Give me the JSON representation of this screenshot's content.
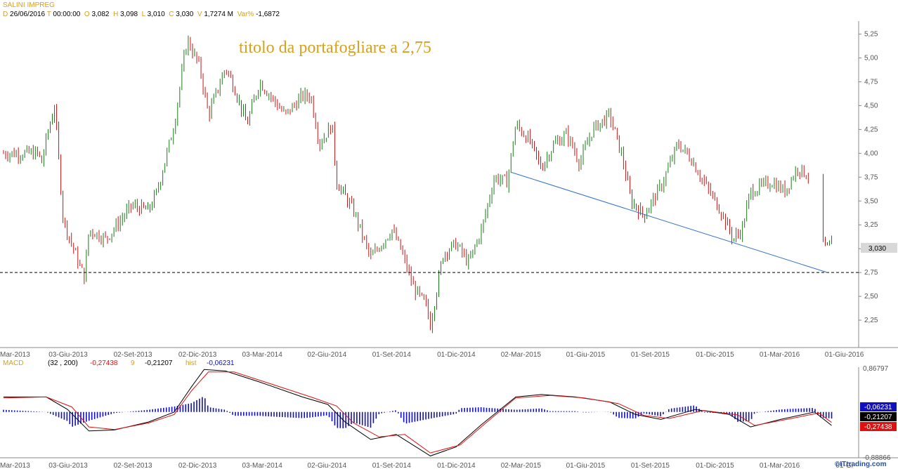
{
  "header": {
    "symbol": "SALINI IMPREG",
    "date_key": "D",
    "date": "26/06/2016",
    "time_key": "T",
    "time": "00:00:00",
    "open_key": "O",
    "open": "3,082",
    "high_key": "H",
    "high": "3,098",
    "low_key": "L",
    "low": "3,010",
    "close_key": "C",
    "close": "3,030",
    "volume_key": "V",
    "volume": "1,7274 M",
    "var_key": "Var%",
    "var": "-1,6872"
  },
  "annotation": "titolo da portafogliare a 2,75",
  "last_price_label": "3,030",
  "watermark": "©ITtrading.com",
  "colors": {
    "up": "#1a7a1a",
    "down": "#c81414",
    "trendline": "#3070c8",
    "accent": "#d6a020",
    "macd_hist": "#1010c0",
    "macd_line": "#000000",
    "signal_line": "#e01010"
  },
  "chart_data": [
    {
      "type": "candlestick",
      "title": "SALINI IMPREG",
      "x_tick_labels": [
        "Mar-2013",
        "03-Giu-2013",
        "02-Set-2013",
        "02-Dic-2013",
        "03-Mar-2014",
        "02-Giu-2014",
        "01-Set-2014",
        "01-Dic-2014",
        "02-Mar-2015",
        "01-Giu-2015",
        "01-Set-2015",
        "01-Dic-2015",
        "01-Mar-2016",
        "01-Giu-2016"
      ],
      "y_ticks": [
        "2,25",
        "2,50",
        "2,75",
        "3,00",
        "3,25",
        "3,50",
        "3,75",
        "4,00",
        "4,25",
        "4,50",
        "4,75",
        "5,00",
        "5,25"
      ],
      "y_tick_values": [
        2.25,
        2.5,
        2.75,
        3.0,
        3.25,
        3.5,
        3.75,
        4.0,
        4.25,
        4.5,
        4.75,
        5.0,
        5.25
      ],
      "ylim": [
        2.0,
        5.35
      ],
      "close_path": [
        [
          0,
          4.0
        ],
        [
          0.04,
          4.0
        ],
        [
          0.045,
          3.9
        ],
        [
          0.05,
          4.15
        ],
        [
          0.06,
          4.5
        ],
        [
          0.07,
          3.3
        ],
        [
          0.09,
          2.8
        ],
        [
          0.095,
          2.7
        ],
        [
          0.1,
          3.2
        ],
        [
          0.12,
          3.1
        ],
        [
          0.15,
          3.45
        ],
        [
          0.17,
          3.4
        ],
        [
          0.18,
          3.6
        ],
        [
          0.2,
          4.3
        ],
        [
          0.215,
          5.2
        ],
        [
          0.23,
          4.9
        ],
        [
          0.24,
          4.4
        ],
        [
          0.26,
          4.9
        ],
        [
          0.27,
          4.7
        ],
        [
          0.285,
          4.3
        ],
        [
          0.3,
          4.75
        ],
        [
          0.33,
          4.4
        ],
        [
          0.35,
          4.6
        ],
        [
          0.36,
          4.6
        ],
        [
          0.37,
          4.1
        ],
        [
          0.385,
          4.3
        ],
        [
          0.39,
          3.7
        ],
        [
          0.41,
          3.4
        ],
        [
          0.43,
          2.9
        ],
        [
          0.455,
          3.2
        ],
        [
          0.465,
          3.0
        ],
        [
          0.48,
          2.6
        ],
        [
          0.495,
          2.4
        ],
        [
          0.5,
          2.2
        ],
        [
          0.515,
          2.95
        ],
        [
          0.53,
          3.05
        ],
        [
          0.545,
          2.85
        ],
        [
          0.56,
          3.2
        ],
        [
          0.575,
          3.75
        ],
        [
          0.59,
          3.7
        ],
        [
          0.6,
          4.3
        ],
        [
          0.615,
          4.15
        ],
        [
          0.63,
          3.85
        ],
        [
          0.645,
          4.1
        ],
        [
          0.66,
          4.2
        ],
        [
          0.675,
          3.9
        ],
        [
          0.69,
          4.25
        ],
        [
          0.71,
          4.4
        ],
        [
          0.725,
          3.95
        ],
        [
          0.735,
          3.5
        ],
        [
          0.75,
          3.35
        ],
        [
          0.77,
          3.65
        ],
        [
          0.79,
          4.1
        ],
        [
          0.805,
          3.95
        ],
        [
          0.82,
          3.7
        ],
        [
          0.84,
          3.4
        ],
        [
          0.855,
          3.1
        ],
        [
          0.865,
          3.2
        ],
        [
          0.875,
          3.6
        ],
        [
          0.9,
          3.7
        ],
        [
          0.915,
          3.6
        ],
        [
          0.93,
          3.85
        ],
        [
          0.945,
          3.75
        ],
        [
          0.95,
          3.2
        ],
        [
          0.965,
          3.0
        ],
        [
          0.97,
          3.03
        ]
      ],
      "gap_after_x": 0.945,
      "support_level": 2.75,
      "trendline": {
        "from": [
          0.595,
          3.8
        ],
        "to": [
          0.965,
          2.75
        ]
      },
      "last_close": 3.03
    },
    {
      "type": "line",
      "title": "MACD",
      "params": "(32 , 200)",
      "values": {
        "macd": "-0,27438",
        "signal_key": "9",
        "signal": "-0,21207",
        "hist_key": "hist",
        "hist": "-0,06231"
      },
      "y_ticks": [
        "0,86797",
        "-0,88866"
      ],
      "ylim": [
        -0.88866,
        0.86797
      ],
      "right_labels": [
        "-0,06231",
        "-0,21207",
        "-0,27438"
      ],
      "x_tick_labels": [
        "Mar-2013",
        "03-Giu-2013",
        "02-Set-2013",
        "02-Dic-2013",
        "03-Mar-2014",
        "02-Giu-2014",
        "01-Set-2014",
        "01-Dic-2014",
        "02-Mar-2015",
        "01-Giu-2015",
        "01-Set-2015",
        "01-Dic-2015",
        "01-Mar-2016",
        "01-Gi"
      ],
      "macd_path": [
        [
          0,
          0.3
        ],
        [
          0.05,
          0.3
        ],
        [
          0.075,
          0.05
        ],
        [
          0.1,
          -0.38
        ],
        [
          0.13,
          -0.36
        ],
        [
          0.17,
          -0.2
        ],
        [
          0.2,
          0.0
        ],
        [
          0.22,
          0.5
        ],
        [
          0.235,
          0.85
        ],
        [
          0.26,
          0.82
        ],
        [
          0.3,
          0.6
        ],
        [
          0.35,
          0.3
        ],
        [
          0.38,
          0.15
        ],
        [
          0.4,
          -0.2
        ],
        [
          0.43,
          -0.55
        ],
        [
          0.46,
          -0.45
        ],
        [
          0.5,
          -0.88
        ],
        [
          0.53,
          -0.7
        ],
        [
          0.56,
          -0.25
        ],
        [
          0.6,
          0.3
        ],
        [
          0.63,
          0.35
        ],
        [
          0.67,
          0.3
        ],
        [
          0.71,
          0.2
        ],
        [
          0.74,
          -0.05
        ],
        [
          0.77,
          -0.15
        ],
        [
          0.81,
          0.05
        ],
        [
          0.85,
          -0.05
        ],
        [
          0.875,
          -0.3
        ],
        [
          0.91,
          -0.15
        ],
        [
          0.95,
          0.0
        ],
        [
          0.97,
          -0.27
        ]
      ],
      "signal_path": [
        [
          0,
          0.28
        ],
        [
          0.05,
          0.3
        ],
        [
          0.08,
          0.1
        ],
        [
          0.1,
          -0.3
        ],
        [
          0.13,
          -0.35
        ],
        [
          0.17,
          -0.22
        ],
        [
          0.2,
          -0.05
        ],
        [
          0.22,
          0.42
        ],
        [
          0.24,
          0.8
        ],
        [
          0.27,
          0.8
        ],
        [
          0.31,
          0.58
        ],
        [
          0.36,
          0.3
        ],
        [
          0.39,
          0.12
        ],
        [
          0.41,
          -0.22
        ],
        [
          0.44,
          -0.5
        ],
        [
          0.47,
          -0.45
        ],
        [
          0.5,
          -0.82
        ],
        [
          0.535,
          -0.66
        ],
        [
          0.565,
          -0.22
        ],
        [
          0.6,
          0.28
        ],
        [
          0.64,
          0.33
        ],
        [
          0.68,
          0.28
        ],
        [
          0.72,
          0.17
        ],
        [
          0.75,
          -0.07
        ],
        [
          0.78,
          -0.13
        ],
        [
          0.82,
          0.03
        ],
        [
          0.86,
          -0.06
        ],
        [
          0.88,
          -0.27
        ],
        [
          0.92,
          -0.14
        ],
        [
          0.955,
          -0.02
        ],
        [
          0.97,
          -0.21
        ]
      ]
    }
  ]
}
